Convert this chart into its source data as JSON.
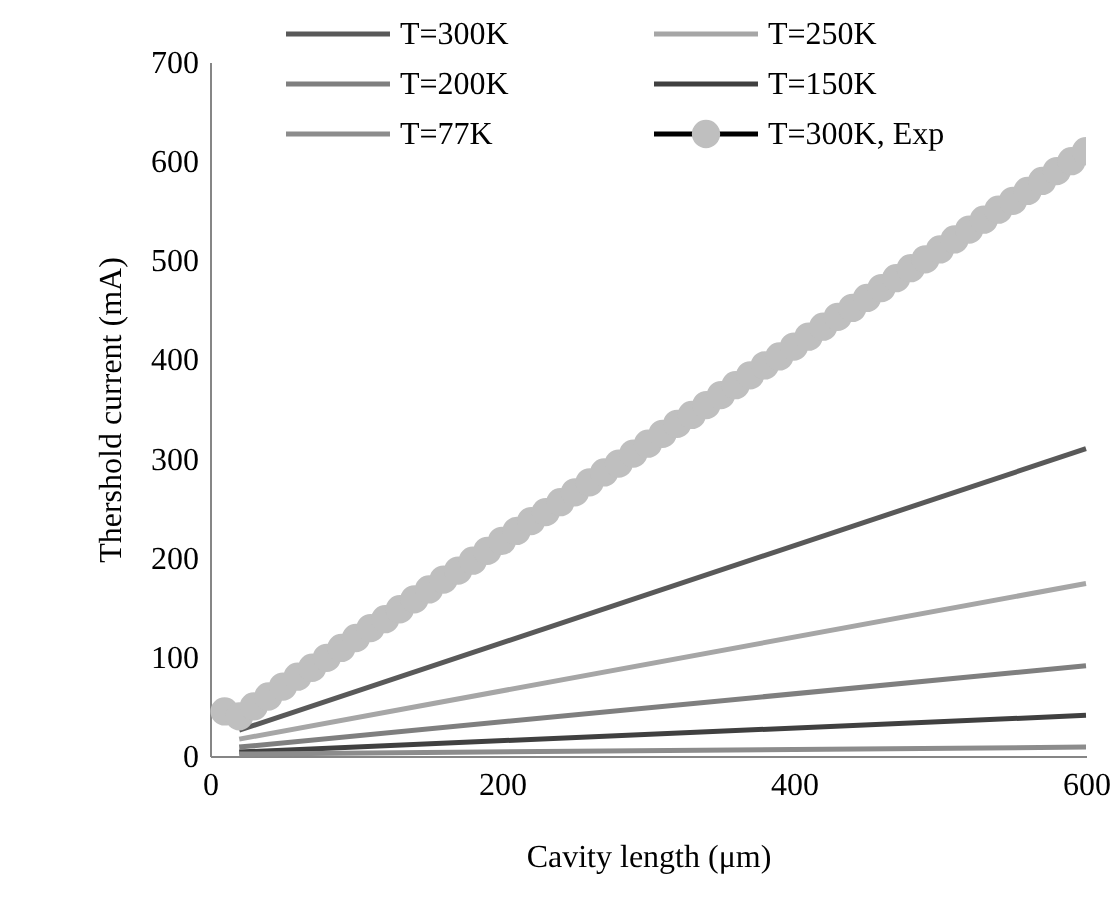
{
  "chart_data": {
    "type": "line",
    "xlabel": "Cavity length (μm)",
    "ylabel": "Thershold current (mA)",
    "xlim": [
      0,
      600
    ],
    "xticks": [
      0,
      200,
      400,
      600
    ],
    "ylim": [
      0,
      700
    ],
    "yticks": [
      0,
      100,
      200,
      300,
      400,
      500,
      600,
      700
    ],
    "grid": false,
    "legend": "top",
    "marker": "none",
    "line_style": "solid",
    "series": [
      {
        "name": "T=300K",
        "color": "#595959",
        "x": [
          20,
          600
        ],
        "values": [
          26,
          310
        ]
      },
      {
        "name": "T=250K",
        "color": "#a6a6a6",
        "x": [
          20,
          600
        ],
        "values": [
          17,
          174
        ]
      },
      {
        "name": "T=200K",
        "color": "#7f7f7f",
        "x": [
          20,
          600
        ],
        "values": [
          9,
          91
        ]
      },
      {
        "name": "T=150K",
        "color": "#404040",
        "x": [
          20,
          600
        ],
        "values": [
          4,
          41
        ]
      },
      {
        "name": "T=77K",
        "color": "#8c8c8c",
        "x": [
          20,
          600
        ],
        "values": [
          2,
          9
        ]
      },
      {
        "name": "T=300K, Exp",
        "type": "scatter",
        "color": "#bfbfbf",
        "marker": "circle",
        "x": [
          10,
          20,
          30,
          40,
          50,
          60,
          70,
          80,
          90,
          100,
          110,
          120,
          130,
          140,
          150,
          160,
          170,
          180,
          190,
          200,
          210,
          220,
          230,
          240,
          250,
          260,
          270,
          280,
          290,
          300,
          310,
          320,
          330,
          340,
          350,
          360,
          370,
          380,
          390,
          400,
          410,
          420,
          430,
          440,
          450,
          460,
          470,
          480,
          490,
          500,
          510,
          520,
          530,
          540,
          550,
          560,
          570,
          580,
          590,
          600
        ],
        "values": [
          45,
          40,
          50,
          60,
          70,
          80,
          89,
          99,
          109,
          119,
          129,
          138,
          148,
          158,
          168,
          178,
          187,
          197,
          207,
          217,
          227,
          237,
          246,
          256,
          266,
          276,
          286,
          295,
          305,
          315,
          325,
          335,
          344,
          354,
          364,
          374,
          384,
          394,
          403,
          413,
          423,
          433,
          443,
          452,
          462,
          472,
          482,
          492,
          501,
          511,
          521,
          531,
          541,
          551,
          560,
          570,
          580,
          590,
          600,
          610
        ]
      }
    ]
  }
}
